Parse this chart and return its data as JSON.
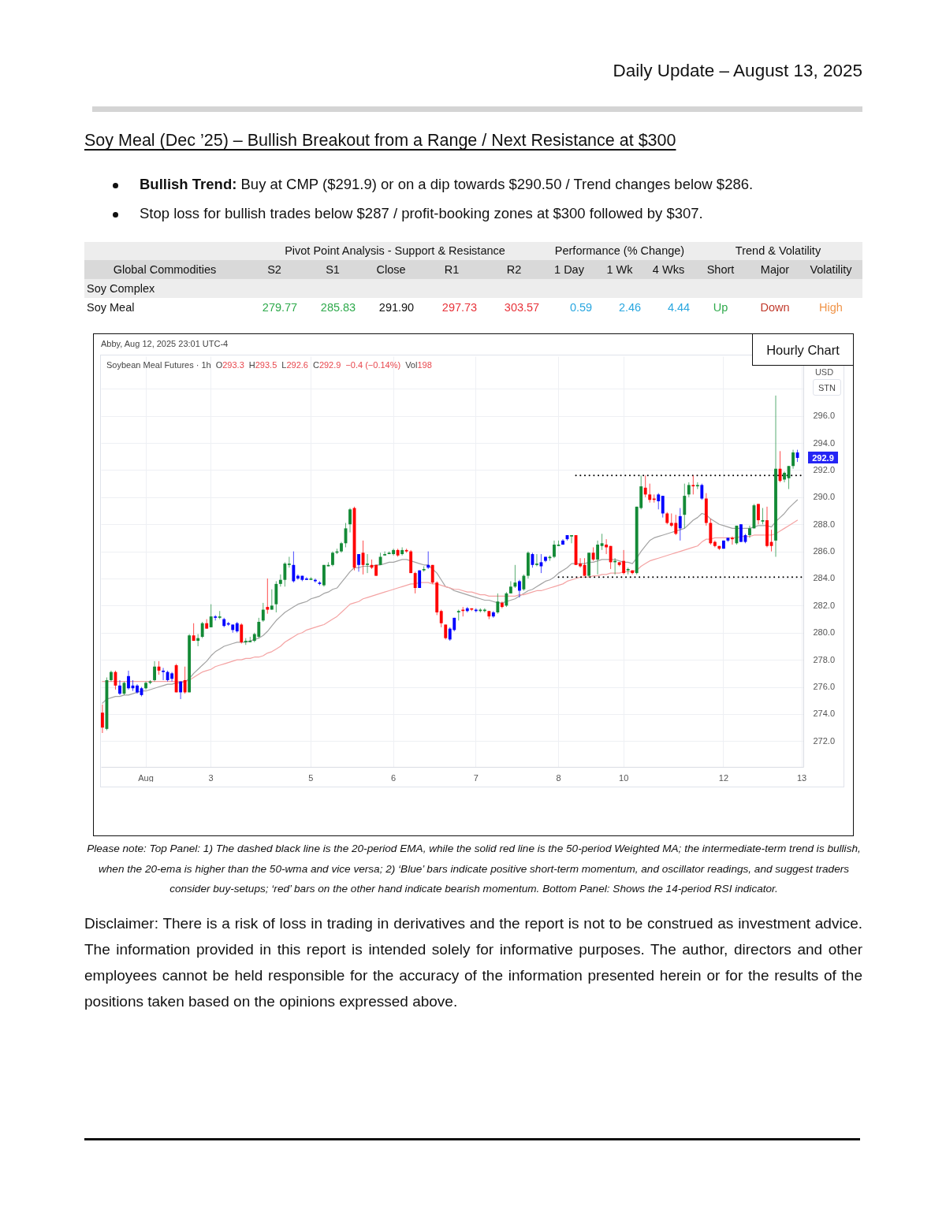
{
  "chart_data": {
    "type": "candlestick",
    "title": "Soy Meal (Dec ’25) – Bullish Breakout from a Range / Next Resistance at $300",
    "subtitle": "Daily Update – August 13, 2025",
    "ylabel": "USD",
    "annotations": [
      "Bullish Trend:",
      "Buy at CMP ($291.9) or on a dip towards $290.50 / Trend changes below $286.",
      "Stop loss for bullish trades below $287 / profit-booking zones at $300 followed by $307.",
      "Pivot Point Analysis - Support & Resistance",
      "Performance (% Change)",
      "Trend & Volatility",
      "Global Commodities",
      "S2",
      "S1",
      "Close",
      "R1",
      "R2",
      "1 Day",
      "1 Wk",
      "4 Wks",
      "Short",
      "Major",
      "Volatility",
      "Soy Complex",
      "Soy Meal",
      "279.77",
      "285.83",
      "291.90",
      "297.73",
      "303.57",
      "0.59",
      "2.46",
      "4.44",
      "Up",
      "Down",
      "High",
      "Abby, Aug 12, 2025 23:01 UTC-4",
      "Hourly Chart",
      "Soybean Meal Futures · 1h",
      "O293.3",
      "H293.5",
      "L292.6",
      "C292.9",
      "−0.4 (−0.14%)",
      "Vol198",
      "292.9",
      "STN",
      "Please note: Top Panel: 1) The dashed black line is the 20-period EMA, while the solid red line is the 50-period Weighted MA; the intermediate-term trend is bullish, when the 20-ema is higher than the 50-wma and vice versa; 2) ‘Blue’ bars indicate positive short-term momentum, and oscillator readings, and suggest traders consider buy-setups; ‘red’ bars on the other hand indicate bearish momentum. Bottom Panel: Shows the 14-period RSI indicator.",
      "Disclaimer: There is a risk of loss in trading in derivatives and the report is not to be construed as investment advice. The information provided in this report is intended solely for informative purposes. The author, directors and other employees cannot be held responsible for the accuracy of the information presented herein or for the results of the positions taken based on the opinions expressed above."
    ],
    "categories": [
      null,
      null,
      null,
      null,
      null,
      null,
      null,
      null,
      null,
      null,
      "Aug",
      null,
      null,
      null,
      null,
      null,
      null,
      null,
      null,
      null,
      null,
      null,
      null,
      null,
      null,
      "3",
      null,
      null,
      null,
      null,
      null,
      null,
      null,
      null,
      null,
      null,
      null,
      null,
      null,
      null,
      null,
      null,
      null,
      null,
      null,
      null,
      null,
      null,
      "5",
      null,
      null,
      null,
      null,
      null,
      null,
      null,
      null,
      null,
      null,
      null,
      null,
      null,
      null,
      null,
      null,
      null,
      null,
      "6",
      null,
      null,
      null,
      null,
      null,
      null,
      null,
      null,
      null,
      null,
      null,
      null,
      null,
      null,
      null,
      null,
      null,
      null,
      "7",
      null,
      null,
      null,
      null,
      null,
      null,
      null,
      null,
      null,
      null,
      null,
      null,
      null,
      null,
      null,
      null,
      null,
      null,
      "8",
      null,
      null,
      null,
      null,
      null,
      null,
      null,
      null,
      null,
      null,
      null,
      null,
      null,
      null,
      "10",
      null,
      null,
      null,
      null,
      null,
      null,
      null,
      null,
      null,
      null,
      null,
      null,
      null,
      null,
      null,
      null,
      null,
      null,
      null,
      null,
      null,
      null,
      "12",
      null,
      null,
      null,
      null,
      null,
      null,
      null,
      null,
      null,
      null,
      null,
      null,
      null,
      null,
      null,
      null,
      null,
      "13"
    ],
    "ohlc": [
      [
        274.1,
        274.7,
        272.6,
        273.0
      ],
      [
        272.9,
        276.7,
        272.8,
        276.5
      ],
      [
        276.5,
        277.2,
        276.4,
        277.1
      ],
      [
        277.1,
        277.2,
        275.8,
        276.1
      ],
      [
        276.1,
        276.5,
        275.4,
        275.5
      ],
      [
        275.5,
        276.4,
        275.4,
        276.3
      ],
      [
        275.9,
        277.2,
        275.8,
        276.8
      ],
      [
        276.1,
        276.5,
        275.7,
        275.9
      ],
      [
        276.1,
        276.2,
        275.5,
        275.6
      ],
      [
        275.9,
        276.0,
        275.3,
        275.4
      ],
      [
        275.9,
        276.4,
        275.8,
        276.3
      ],
      [
        276.3,
        276.5,
        276.2,
        276.4
      ],
      [
        276.5,
        277.9,
        276.4,
        277.5
      ],
      [
        277.5,
        277.9,
        276.9,
        277.2
      ],
      [
        277.2,
        277.4,
        276.5,
        277.1
      ],
      [
        277.1,
        277.2,
        276.4,
        276.5
      ],
      [
        276.6,
        277.1,
        276.4,
        277.0
      ],
      [
        277.6,
        277.7,
        275.6,
        275.6
      ],
      [
        275.6,
        276.4,
        275.1,
        276.4
      ],
      [
        276.5,
        277.5,
        275.5,
        275.6
      ],
      [
        275.6,
        279.9,
        275.6,
        279.8
      ],
      [
        279.8,
        280.7,
        279.4,
        279.4
      ],
      [
        279.4,
        279.9,
        279.0,
        279.6
      ],
      [
        279.7,
        280.8,
        279.6,
        280.7
      ],
      [
        280.7,
        281.0,
        280.3,
        280.3
      ],
      [
        280.4,
        282.1,
        280.4,
        281.2
      ],
      [
        281.2,
        281.3,
        280.9,
        281.1
      ],
      [
        281.1,
        281.6,
        281.0,
        281.2
      ],
      [
        281.0,
        281.1,
        280.4,
        280.5
      ],
      [
        280.7,
        280.8,
        280.5,
        280.6
      ],
      [
        280.6,
        280.6,
        280.0,
        280.2
      ],
      [
        280.1,
        280.8,
        280.0,
        280.7
      ],
      [
        280.6,
        280.7,
        279.2,
        279.3
      ],
      [
        279.3,
        279.6,
        279.1,
        279.4
      ],
      [
        279.3,
        279.7,
        279.3,
        279.4
      ],
      [
        279.4,
        280.0,
        279.3,
        279.9
      ],
      [
        279.7,
        281.1,
        279.6,
        280.8
      ],
      [
        280.9,
        282.2,
        280.8,
        281.7
      ],
      [
        281.9,
        284.0,
        281.4,
        281.7
      ],
      [
        281.7,
        283.2,
        281.7,
        282.0
      ],
      [
        282.1,
        283.8,
        281.5,
        283.6
      ],
      [
        283.6,
        284.3,
        283.4,
        283.9
      ],
      [
        283.9,
        285.2,
        283.4,
        285.1
      ],
      [
        285.0,
        285.6,
        284.8,
        285.1
      ],
      [
        285.0,
        286.0,
        283.7,
        283.8
      ],
      [
        284.0,
        284.3,
        283.9,
        284.2
      ],
      [
        284.2,
        284.2,
        283.8,
        283.9
      ],
      [
        283.9,
        284.1,
        283.9,
        284.0
      ],
      [
        283.9,
        284.1,
        283.9,
        284.0
      ],
      [
        283.9,
        284.0,
        283.7,
        283.8
      ],
      [
        283.7,
        283.8,
        283.5,
        283.6
      ],
      [
        283.5,
        285.0,
        283.4,
        285.0
      ],
      [
        284.9,
        285.2,
        284.9,
        285.0
      ],
      [
        285.0,
        286.0,
        284.9,
        285.9
      ],
      [
        285.9,
        286.2,
        285.8,
        286.0
      ],
      [
        286.0,
        286.7,
        285.9,
        286.6
      ],
      [
        286.6,
        288.1,
        286.3,
        287.7
      ],
      [
        288.0,
        289.2,
        287.4,
        289.1
      ],
      [
        289.2,
        289.3,
        284.6,
        284.8
      ],
      [
        285.0,
        285.8,
        284.5,
        285.8
      ],
      [
        285.9,
        286.8,
        284.3,
        285.0
      ],
      [
        285.0,
        285.8,
        284.4,
        285.1
      ],
      [
        285.0,
        285.4,
        284.7,
        284.8
      ],
      [
        285.0,
        285.0,
        284.2,
        284.2
      ],
      [
        285.0,
        285.9,
        285.0,
        285.6
      ],
      [
        285.7,
        286.0,
        285.7,
        285.8
      ],
      [
        285.8,
        286.0,
        285.8,
        285.9
      ],
      [
        285.8,
        286.2,
        285.7,
        286.1
      ],
      [
        286.1,
        286.2,
        285.6,
        285.7
      ],
      [
        285.8,
        286.3,
        285.7,
        286.1
      ],
      [
        286.1,
        286.2,
        285.9,
        286.0
      ],
      [
        286.0,
        286.1,
        284.4,
        284.4
      ],
      [
        284.4,
        284.5,
        282.9,
        283.3
      ],
      [
        283.3,
        284.6,
        283.3,
        284.6
      ],
      [
        284.6,
        284.9,
        284.5,
        284.7
      ],
      [
        284.8,
        286.0,
        284.7,
        285.0
      ],
      [
        285.0,
        285.0,
        283.6,
        283.7
      ],
      [
        283.7,
        283.8,
        281.3,
        281.5
      ],
      [
        281.6,
        281.7,
        280.4,
        280.7
      ],
      [
        280.6,
        280.6,
        279.5,
        279.6
      ],
      [
        279.5,
        280.4,
        279.4,
        280.3
      ],
      [
        280.2,
        281.1,
        280.1,
        281.1
      ],
      [
        281.5,
        281.7,
        280.9,
        281.6
      ],
      [
        281.7,
        281.9,
        281.2,
        281.6
      ],
      [
        281.6,
        281.9,
        281.5,
        281.8
      ],
      [
        281.8,
        281.8,
        281.6,
        281.7
      ],
      [
        281.7,
        281.8,
        281.5,
        281.6
      ],
      [
        281.6,
        281.8,
        281.5,
        281.7
      ],
      [
        281.6,
        281.8,
        281.5,
        281.7
      ],
      [
        281.6,
        281.6,
        281.0,
        281.2
      ],
      [
        281.2,
        281.6,
        281.1,
        281.5
      ],
      [
        281.5,
        282.9,
        281.4,
        282.3
      ],
      [
        282.2,
        282.3,
        281.8,
        281.9
      ],
      [
        282.0,
        283.0,
        281.9,
        282.9
      ],
      [
        282.9,
        283.8,
        282.9,
        283.4
      ],
      [
        283.4,
        285.0,
        283.3,
        283.7
      ],
      [
        283.8,
        283.9,
        282.6,
        283.1
      ],
      [
        283.2,
        284.3,
        283.1,
        284.2
      ],
      [
        284.2,
        286.0,
        284.0,
        285.9
      ],
      [
        285.8,
        285.9,
        284.8,
        285.0
      ],
      [
        285.0,
        285.8,
        284.9,
        285.1
      ],
      [
        284.9,
        285.8,
        284.4,
        285.2
      ],
      [
        285.3,
        285.6,
        285.2,
        285.6
      ],
      [
        285.5,
        285.7,
        285.3,
        285.6
      ],
      [
        285.6,
        286.8,
        285.5,
        286.5
      ],
      [
        286.4,
        286.8,
        286.4,
        286.5
      ],
      [
        286.5,
        286.9,
        286.5,
        286.8
      ],
      [
        286.9,
        287.2,
        286.8,
        287.2
      ],
      [
        287.1,
        287.2,
        286.6,
        287.2
      ],
      [
        287.2,
        287.2,
        285.0,
        285.0
      ],
      [
        285.1,
        285.5,
        284.8,
        284.9
      ],
      [
        285.0,
        285.5,
        284.2,
        284.2
      ],
      [
        284.2,
        285.9,
        284.1,
        285.9
      ],
      [
        285.9,
        286.3,
        285.3,
        285.4
      ],
      [
        285.4,
        286.8,
        284.3,
        286.5
      ],
      [
        286.4,
        287.3,
        286.1,
        286.6
      ],
      [
        286.5,
        286.9,
        285.8,
        286.3
      ],
      [
        286.4,
        286.4,
        284.7,
        285.2
      ],
      [
        285.2,
        285.5,
        284.3,
        285.3
      ],
      [
        285.2,
        285.2,
        284.9,
        285.0
      ],
      [
        285.3,
        286.1,
        284.3,
        284.4
      ],
      [
        284.6,
        284.8,
        284.3,
        284.7
      ],
      [
        284.6,
        284.6,
        284.3,
        284.4
      ],
      [
        284.4,
        289.3,
        284.3,
        289.3
      ],
      [
        289.2,
        291.6,
        289.1,
        290.8
      ],
      [
        290.7,
        291.6,
        290.0,
        290.2
      ],
      [
        290.2,
        291.0,
        289.6,
        289.8
      ],
      [
        289.9,
        290.2,
        289.6,
        289.8
      ],
      [
        289.7,
        290.3,
        289.1,
        290.2
      ],
      [
        290.1,
        290.1,
        288.5,
        288.8
      ],
      [
        288.8,
        288.9,
        288.0,
        288.1
      ],
      [
        288.1,
        288.8,
        287.8,
        287.9
      ],
      [
        288.1,
        288.7,
        287.2,
        287.3
      ],
      [
        287.7,
        289.2,
        286.8,
        288.6
      ],
      [
        288.7,
        291.0,
        287.7,
        290.1
      ],
      [
        290.2,
        291.1,
        290.0,
        290.9
      ],
      [
        290.9,
        291.6,
        290.2,
        290.8
      ],
      [
        290.8,
        291.1,
        290.6,
        290.9
      ],
      [
        290.9,
        291.0,
        289.8,
        289.9
      ],
      [
        289.9,
        290.3,
        287.9,
        288.1
      ],
      [
        288.1,
        288.4,
        286.5,
        286.6
      ],
      [
        286.7,
        286.8,
        286.3,
        286.4
      ],
      [
        286.4,
        286.4,
        286.1,
        286.2
      ],
      [
        286.2,
        286.8,
        286.2,
        286.8
      ],
      [
        286.8,
        287.0,
        286.7,
        287.0
      ],
      [
        287.0,
        287.1,
        286.5,
        286.9
      ],
      [
        286.6,
        287.9,
        286.5,
        287.9
      ],
      [
        288.0,
        288.0,
        286.7,
        286.7
      ],
      [
        286.7,
        287.3,
        286.6,
        287.2
      ],
      [
        287.2,
        287.9,
        287.0,
        287.7
      ],
      [
        287.7,
        289.5,
        287.7,
        289.4
      ],
      [
        289.5,
        289.5,
        288.0,
        288.3
      ],
      [
        288.2,
        289.2,
        288.0,
        288.3
      ],
      [
        288.3,
        289.3,
        286.3,
        286.4
      ],
      [
        286.7,
        287.6,
        286.0,
        286.4
      ],
      [
        286.8,
        297.5,
        285.6,
        292.1
      ],
      [
        292.1,
        293.4,
        291.1,
        291.2
      ],
      [
        291.3,
        291.9,
        291.1,
        291.8
      ],
      [
        291.4,
        292.3,
        290.6,
        292.3
      ],
      [
        292.3,
        293.5,
        292.1,
        293.3
      ],
      [
        293.3,
        293.5,
        292.6,
        292.9
      ],
      null
    ],
    "colors": [
      "#ff0000",
      "#138a36",
      "#138a36",
      "#ff0000",
      "#0000ff",
      "#138a36",
      "#0000ff",
      "#0000ff",
      "#0000ff",
      "#0000ff",
      "#138a36",
      "#138a36",
      "#138a36",
      "#ff0000",
      "#0000ff",
      "#0000ff",
      "#0000ff",
      "#ff0000",
      "#0000ff",
      "#ff0000",
      "#138a36",
      "#ff0000",
      "#138a36",
      "#138a36",
      "#ff0000",
      "#138a36",
      "#0000ff",
      "#138a36",
      "#0000ff",
      "#0000ff",
      "#0000ff",
      "#0000ff",
      "#ff0000",
      "#138a36",
      "#138a36",
      "#138a36",
      "#138a36",
      "#138a36",
      "#ff0000",
      "#138a36",
      "#138a36",
      "#138a36",
      "#138a36",
      "#138a36",
      "#0000ff",
      "#0000ff",
      "#0000ff",
      "#0000ff",
      "#138a36",
      "#0000ff",
      "#0000ff",
      "#138a36",
      "#138a36",
      "#138a36",
      "#138a36",
      "#138a36",
      "#138a36",
      "#138a36",
      "#ff0000",
      "#0000ff",
      "#ff0000",
      "#138a36",
      "#ff0000",
      "#ff0000",
      "#138a36",
      "#138a36",
      "#138a36",
      "#138a36",
      "#ff0000",
      "#138a36",
      "#ff0000",
      "#ff0000",
      "#ff0000",
      "#0000ff",
      "#138a36",
      "#0000ff",
      "#ff0000",
      "#ff0000",
      "#ff0000",
      "#ff0000",
      "#0000ff",
      "#0000ff",
      "#138a36",
      "#ff0000",
      "#0000ff",
      "#ff0000",
      "#0000ff",
      "#138a36",
      "#138a36",
      "#ff0000",
      "#0000ff",
      "#138a36",
      "#ff0000",
      "#138a36",
      "#138a36",
      "#138a36",
      "#0000ff",
      "#138a36",
      "#138a36",
      "#0000ff",
      "#138a36",
      "#0000ff",
      "#0000ff",
      "#138a36",
      "#138a36",
      "#138a36",
      "#0000ff",
      "#0000ff",
      "#138a36",
      "#ff0000",
      "#ff0000",
      "#ff0000",
      "#138a36",
      "#ff0000",
      "#138a36",
      "#138a36",
      "#ff0000",
      "#ff0000",
      "#138a36",
      "#ff0000",
      "#ff0000",
      "#138a36",
      "#ff0000",
      "#138a36",
      "#138a36",
      "#ff0000",
      "#ff0000",
      "#ff0000",
      "#0000ff",
      "#0000ff",
      "#ff0000",
      "#ff0000",
      "#ff0000",
      "#0000ff",
      "#138a36",
      "#138a36",
      "#ff0000",
      "#138a36",
      "#0000ff",
      "#ff0000",
      "#ff0000",
      "#ff0000",
      "#ff0000",
      "#0000ff",
      "#0000ff",
      "#ff0000",
      "#138a36",
      "#0000ff",
      "#0000ff",
      "#138a36",
      "#138a36",
      "#ff0000",
      "#138a36",
      "#ff0000",
      "#ff0000",
      "#138a36",
      "#ff0000",
      "#138a36",
      "#138a36",
      "#138a36",
      "#0000ff",
      null
    ],
    "series": [
      {
        "type": "line",
        "color": "#a3a3a3",
        "values": [
          274.8,
          275.1,
          275.2,
          275.3,
          275.3,
          275.4,
          275.4,
          275.5,
          275.6,
          275.7,
          275.7,
          275.8,
          275.9,
          276.0,
          276.1,
          276.2,
          276.2,
          276.3,
          276.3,
          276.4,
          276.6,
          277.0,
          277.3,
          277.6,
          277.9,
          278.3,
          278.6,
          278.8,
          279.0,
          279.1,
          279.2,
          279.3,
          279.3,
          279.3,
          279.4,
          279.5,
          279.6,
          279.8,
          280.1,
          280.5,
          280.9,
          281.2,
          281.5,
          281.7,
          281.9,
          282.1,
          282.2,
          282.3,
          282.5,
          282.6,
          282.7,
          282.9,
          283.0,
          283.2,
          283.3,
          283.7,
          284.1,
          284.5,
          284.8,
          284.8,
          284.9,
          284.9,
          284.9,
          285.0,
          285.0,
          285.1,
          285.2,
          285.2,
          285.3,
          285.4,
          285.4,
          285.3,
          285.2,
          285.1,
          285.0,
          285.0,
          284.7,
          284.4,
          283.9,
          283.4,
          283.3,
          283.1,
          283.0,
          282.9,
          282.8,
          282.7,
          282.6,
          282.5,
          282.4,
          282.4,
          282.3,
          282.2,
          282.2,
          282.3,
          282.4,
          282.5,
          282.7,
          282.9,
          283.1,
          283.2,
          283.4,
          283.6,
          283.8,
          283.9,
          284.1,
          284.4,
          284.6,
          284.8,
          285.1,
          285.1,
          285.1,
          285.1,
          285.2,
          285.2,
          285.3,
          285.4,
          285.4,
          285.4,
          285.4,
          285.3,
          285.2,
          285.2,
          285.1,
          285.5,
          286.0,
          286.4,
          286.8,
          287.0,
          287.1,
          287.2,
          287.3,
          287.4,
          287.5,
          287.6,
          287.7,
          288.0,
          288.3,
          288.5,
          288.8,
          288.7,
          288.4,
          288.2,
          288.0,
          287.9,
          287.8,
          287.7,
          287.7,
          287.7,
          287.7,
          287.7,
          287.8,
          287.9,
          287.9,
          287.9,
          287.8,
          288.2,
          288.5,
          288.8,
          289.2,
          289.5,
          289.8,
          null
        ]
      },
      {
        "type": "line",
        "color": "#f4a3a3",
        "values": [
          276.4,
          276.4,
          276.4,
          276.4,
          276.4,
          276.4,
          276.4,
          276.4,
          276.4,
          276.4,
          276.4,
          276.4,
          276.4,
          276.4,
          276.4,
          276.4,
          276.4,
          276.4,
          276.4,
          276.4,
          276.5,
          276.7,
          276.9,
          277.1,
          277.2,
          277.3,
          277.5,
          277.6,
          277.7,
          277.8,
          277.9,
          278.0,
          278.0,
          278.1,
          278.1,
          278.2,
          278.2,
          278.3,
          278.5,
          278.6,
          278.8,
          279.0,
          279.3,
          279.5,
          279.7,
          279.9,
          280.0,
          280.2,
          280.3,
          280.4,
          280.5,
          280.6,
          280.8,
          281.0,
          281.2,
          281.5,
          281.8,
          282.1,
          282.2,
          282.3,
          282.5,
          282.6,
          282.7,
          282.8,
          282.9,
          283.0,
          283.1,
          283.2,
          283.3,
          283.4,
          283.5,
          283.6,
          283.6,
          283.7,
          283.7,
          283.7,
          283.6,
          283.6,
          283.5,
          283.4,
          283.3,
          283.2,
          283.2,
          283.1,
          283.0,
          283.0,
          282.9,
          282.8,
          282.8,
          282.7,
          282.7,
          282.7,
          282.7,
          282.7,
          282.7,
          282.7,
          282.8,
          282.8,
          282.9,
          283.0,
          283.1,
          283.1,
          283.2,
          283.3,
          283.4,
          283.5,
          283.6,
          283.8,
          283.9,
          284.0,
          284.1,
          284.1,
          284.1,
          284.2,
          284.2,
          284.3,
          284.3,
          284.4,
          284.4,
          284.4,
          284.5,
          284.5,
          284.5,
          284.6,
          284.9,
          285.1,
          285.3,
          285.4,
          285.5,
          285.6,
          285.7,
          285.8,
          285.9,
          286.0,
          286.1,
          286.2,
          286.3,
          286.4,
          286.7,
          286.9,
          286.9,
          287.0,
          287.0,
          287.0,
          287.0,
          287.0,
          287.0,
          287.1,
          287.1,
          287.1,
          287.2,
          287.2,
          287.2,
          287.2,
          287.2,
          287.3,
          287.5,
          287.7,
          287.9,
          288.1,
          288.3,
          null
        ]
      },
      {
        "type": "line",
        "color": "#000000",
        "line_style": "dotted",
        "values": [
          null,
          null,
          null,
          null,
          null,
          null,
          null,
          null,
          null,
          null,
          null,
          null,
          null,
          null,
          null,
          null,
          null,
          null,
          null,
          null,
          null,
          null,
          null,
          null,
          null,
          null,
          null,
          null,
          null,
          null,
          null,
          null,
          null,
          null,
          null,
          null,
          null,
          null,
          null,
          null,
          null,
          null,
          null,
          null,
          null,
          null,
          null,
          null,
          null,
          null,
          null,
          null,
          null,
          null,
          null,
          null,
          null,
          null,
          null,
          null,
          null,
          null,
          null,
          null,
          null,
          null,
          null,
          null,
          null,
          null,
          null,
          null,
          null,
          null,
          null,
          null,
          null,
          null,
          null,
          null,
          null,
          null,
          null,
          null,
          null,
          null,
          null,
          null,
          null,
          null,
          null,
          null,
          null,
          null,
          null,
          null,
          null,
          null,
          null,
          null,
          null,
          null,
          null,
          null,
          null,
          null,
          null,
          null,
          null,
          291.6,
          291.6,
          291.6,
          291.6,
          291.6,
          291.6,
          291.6,
          291.6,
          291.6,
          291.6,
          291.6,
          291.6,
          291.6,
          291.6,
          291.6,
          291.6,
          291.6,
          291.6,
          291.6,
          291.6,
          291.6,
          291.6,
          291.6,
          291.6,
          291.6,
          291.6,
          291.6,
          291.6,
          291.6,
          291.6,
          291.6,
          291.6,
          291.6,
          291.6,
          291.6,
          291.6,
          291.6,
          291.6,
          291.6,
          291.6,
          291.6,
          291.6,
          291.6,
          291.6,
          291.6,
          291.6,
          291.6,
          291.6,
          291.6,
          291.6,
          291.6,
          291.6,
          291.6
        ]
      },
      {
        "type": "line",
        "color": "#000000",
        "line_style": "dotted",
        "values": [
          null,
          null,
          null,
          null,
          null,
          null,
          null,
          null,
          null,
          null,
          null,
          null,
          null,
          null,
          null,
          null,
          null,
          null,
          null,
          null,
          null,
          null,
          null,
          null,
          null,
          null,
          null,
          null,
          null,
          null,
          null,
          null,
          null,
          null,
          null,
          null,
          null,
          null,
          null,
          null,
          null,
          null,
          null,
          null,
          null,
          null,
          null,
          null,
          null,
          null,
          null,
          null,
          null,
          null,
          null,
          null,
          null,
          null,
          null,
          null,
          null,
          null,
          null,
          null,
          null,
          null,
          null,
          null,
          null,
          null,
          null,
          null,
          null,
          null,
          null,
          null,
          null,
          null,
          null,
          null,
          null,
          null,
          null,
          null,
          null,
          null,
          null,
          null,
          null,
          null,
          null,
          null,
          null,
          null,
          null,
          null,
          null,
          null,
          null,
          null,
          null,
          null,
          null,
          null,
          null,
          284.1,
          284.1,
          284.1,
          284.1,
          284.1,
          284.1,
          284.1,
          284.1,
          284.1,
          284.1,
          284.1,
          284.1,
          284.1,
          284.1,
          284.1,
          284.1,
          284.1,
          284.1,
          284.1,
          284.1,
          284.1,
          284.1,
          284.1,
          284.1,
          284.1,
          284.1,
          284.1,
          284.1,
          284.1,
          284.1,
          284.1,
          284.1,
          284.1,
          284.1,
          284.1,
          284.1,
          284.1,
          284.1,
          284.1,
          284.1,
          284.1,
          284.1,
          284.1,
          284.1,
          284.1,
          284.1,
          284.1,
          284.1,
          284.1,
          284.1,
          284.1,
          284.1,
          284.1,
          284.1,
          284.1,
          284.1,
          284.1
        ]
      }
    ],
    "ylim": [
      270.1,
      300.4
    ],
    "yticks": [
      {
        "value": 272,
        "label": "272.0"
      },
      {
        "value": 274,
        "label": "274.0"
      },
      {
        "value": 276,
        "label": "276.0"
      },
      {
        "value": 278,
        "label": "278.0"
      },
      {
        "value": 280,
        "label": "280.0"
      },
      {
        "value": 282,
        "label": "282.0"
      },
      {
        "value": 284,
        "label": "284.0"
      },
      {
        "value": 286,
        "label": "286.0"
      },
      {
        "value": 288,
        "label": "288.0"
      },
      {
        "value": 290,
        "label": "290.0"
      },
      {
        "value": 292,
        "label": "292.0"
      },
      {
        "value": 294,
        "label": "294.0"
      },
      {
        "value": 296,
        "label": "296.0"
      },
      {
        "value": 298,
        "label": null
      }
    ],
    "grid": true
  }
}
